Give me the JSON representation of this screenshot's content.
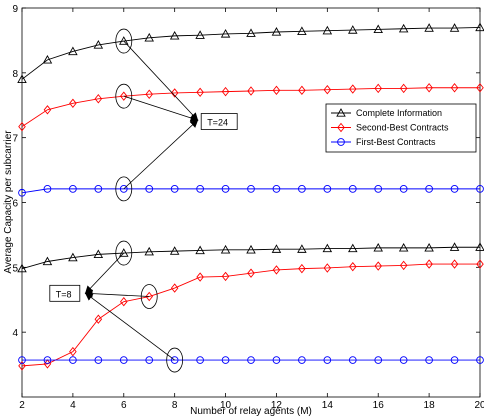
{
  "chart_data": {
    "type": "line",
    "xlabel": "Number of relay agents (M)",
    "ylabel": "Average Capacity per subcarrier",
    "xlim": [
      2,
      20
    ],
    "ylim": [
      3,
      9
    ],
    "xticks": [
      2,
      4,
      6,
      8,
      10,
      12,
      14,
      16,
      18,
      20
    ],
    "yticks": [
      4,
      5,
      6,
      7,
      8,
      9
    ],
    "grid": false,
    "legend_position": "right",
    "x": [
      2,
      3,
      4,
      5,
      6,
      7,
      8,
      9,
      10,
      11,
      12,
      13,
      14,
      15,
      16,
      17,
      18,
      19,
      20
    ],
    "series": [
      {
        "name": "Complete Information",
        "group": "T=24",
        "color": "#000000",
        "marker": "triangle",
        "values": [
          7.9,
          8.2,
          8.33,
          8.43,
          8.49,
          8.54,
          8.57,
          8.58,
          8.6,
          8.61,
          8.63,
          8.64,
          8.65,
          8.66,
          8.67,
          8.68,
          8.69,
          8.69,
          8.7
        ]
      },
      {
        "name": "Second-Best Contracts",
        "group": "T=24",
        "color": "#ff0000",
        "marker": "diamond",
        "values": [
          7.17,
          7.43,
          7.53,
          7.6,
          7.64,
          7.67,
          7.69,
          7.7,
          7.71,
          7.72,
          7.73,
          7.73,
          7.74,
          7.75,
          7.76,
          7.76,
          7.77,
          7.77,
          7.77
        ]
      },
      {
        "name": "First-Best Contracts",
        "group": "T=24",
        "color": "#0000ff",
        "marker": "circle",
        "values": [
          6.15,
          6.21,
          6.21,
          6.21,
          6.21,
          6.21,
          6.21,
          6.21,
          6.21,
          6.21,
          6.21,
          6.21,
          6.21,
          6.21,
          6.21,
          6.21,
          6.21,
          6.21,
          6.21
        ]
      },
      {
        "name": "Complete Information",
        "group": "T=8",
        "color": "#000000",
        "marker": "triangle",
        "values": [
          4.98,
          5.09,
          5.15,
          5.2,
          5.22,
          5.24,
          5.25,
          5.26,
          5.27,
          5.27,
          5.28,
          5.28,
          5.29,
          5.29,
          5.3,
          5.3,
          5.3,
          5.31,
          5.31
        ]
      },
      {
        "name": "Second-Best Contracts",
        "group": "T=8",
        "color": "#ff0000",
        "marker": "diamond",
        "values": [
          3.48,
          3.51,
          3.7,
          4.2,
          4.47,
          4.55,
          4.68,
          4.85,
          4.86,
          4.91,
          4.96,
          4.98,
          4.99,
          5.01,
          5.02,
          5.03,
          5.05,
          5.05,
          5.05
        ]
      },
      {
        "name": "First-Best Contracts",
        "group": "T=8",
        "color": "#0000ff",
        "marker": "circle",
        "values": [
          3.57,
          3.57,
          3.57,
          3.57,
          3.57,
          3.57,
          3.57,
          3.57,
          3.57,
          3.57,
          3.57,
          3.57,
          3.57,
          3.57,
          3.57,
          3.57,
          3.57,
          3.57,
          3.57
        ]
      }
    ],
    "legend": [
      "Complete Information",
      "Second-Best Contracts",
      "First-Best Contracts"
    ],
    "annotations": [
      {
        "text": "T=24",
        "box_x": 9.2,
        "box_y": 7.28,
        "arrow_from": [
          [
            6,
            8.49
          ],
          [
            6,
            7.64
          ],
          [
            6,
            6.21
          ]
        ],
        "arrow_to": [
          8.9,
          7.27
        ],
        "ellipses": [
          [
            6,
            8.49
          ],
          [
            6,
            7.64
          ],
          [
            6,
            6.21
          ]
        ]
      },
      {
        "text": "T=8",
        "box_x": 3.25,
        "box_y": 4.63,
        "arrow_from": [
          [
            6,
            5.22
          ],
          [
            7,
            4.55
          ],
          [
            8,
            3.57
          ]
        ],
        "arrow_to": [
          4.5,
          4.6
        ],
        "ellipses": [
          [
            6,
            5.22
          ],
          [
            7,
            4.55
          ],
          [
            8,
            3.57
          ]
        ]
      }
    ]
  }
}
